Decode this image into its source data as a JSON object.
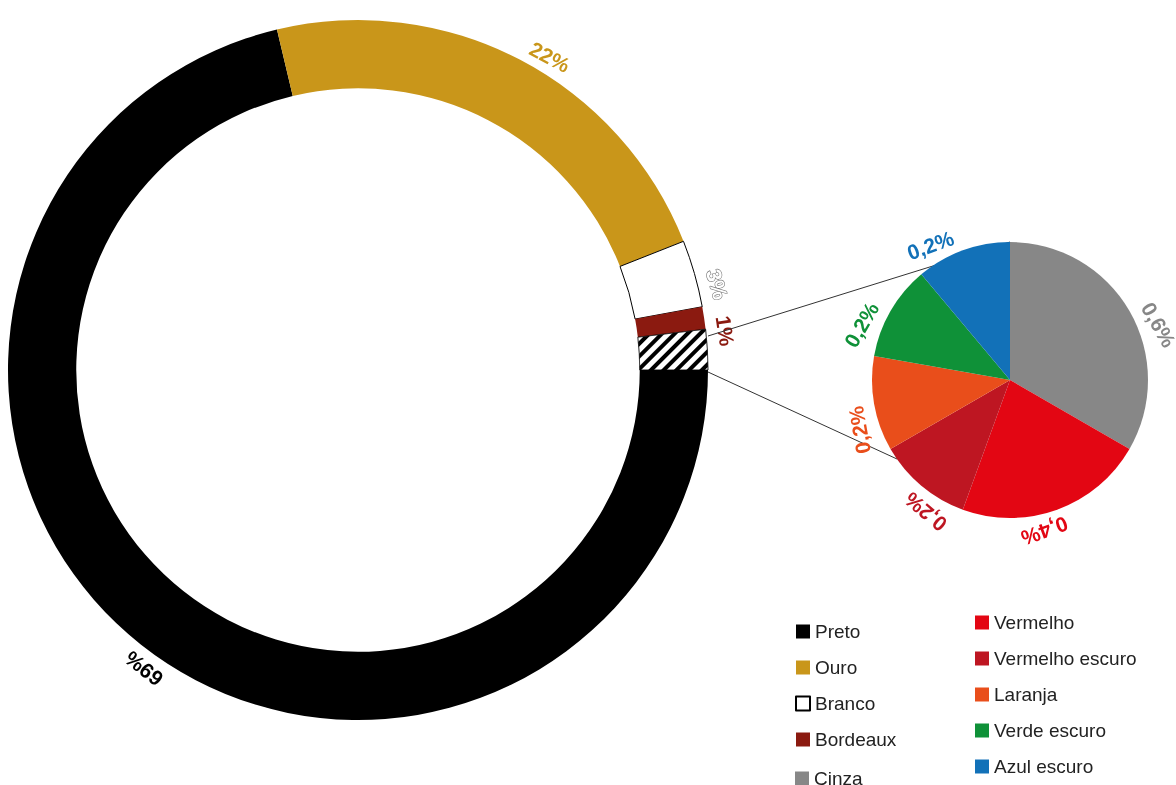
{
  "chart_data": [
    {
      "type": "donut",
      "categories": [
        "Preto",
        "Ouro",
        "Branco",
        "Bordeaux",
        null
      ],
      "values": [
        69,
        22,
        3,
        1,
        1.8
      ],
      "colors": [
        "#000000",
        "#c9961a",
        "#ffffff",
        "#8b1a10",
        "#000000"
      ],
      "value_labels": [
        "69%",
        "22%",
        "3%",
        "1%",
        null
      ],
      "legend": "bottom right"
    },
    {
      "type": "pie",
      "categories": [
        "Cinza",
        "Vermelho",
        "Vermelho escuro",
        "Laranja",
        "Verde escuro",
        "Azul escuro"
      ],
      "values": [
        0.6,
        0.4,
        0.2,
        0.2,
        0.2,
        0.2
      ],
      "colors": [
        "#878787",
        "#e30613",
        "#be1622",
        "#e94e1b",
        "#0f9138",
        "#1271b8"
      ],
      "value_labels": [
        "0,6%",
        "0,4%",
        "0,2%",
        "0,2%",
        "0,2%",
        "0,2%"
      ],
      "legend": "bottom"
    }
  ]
}
